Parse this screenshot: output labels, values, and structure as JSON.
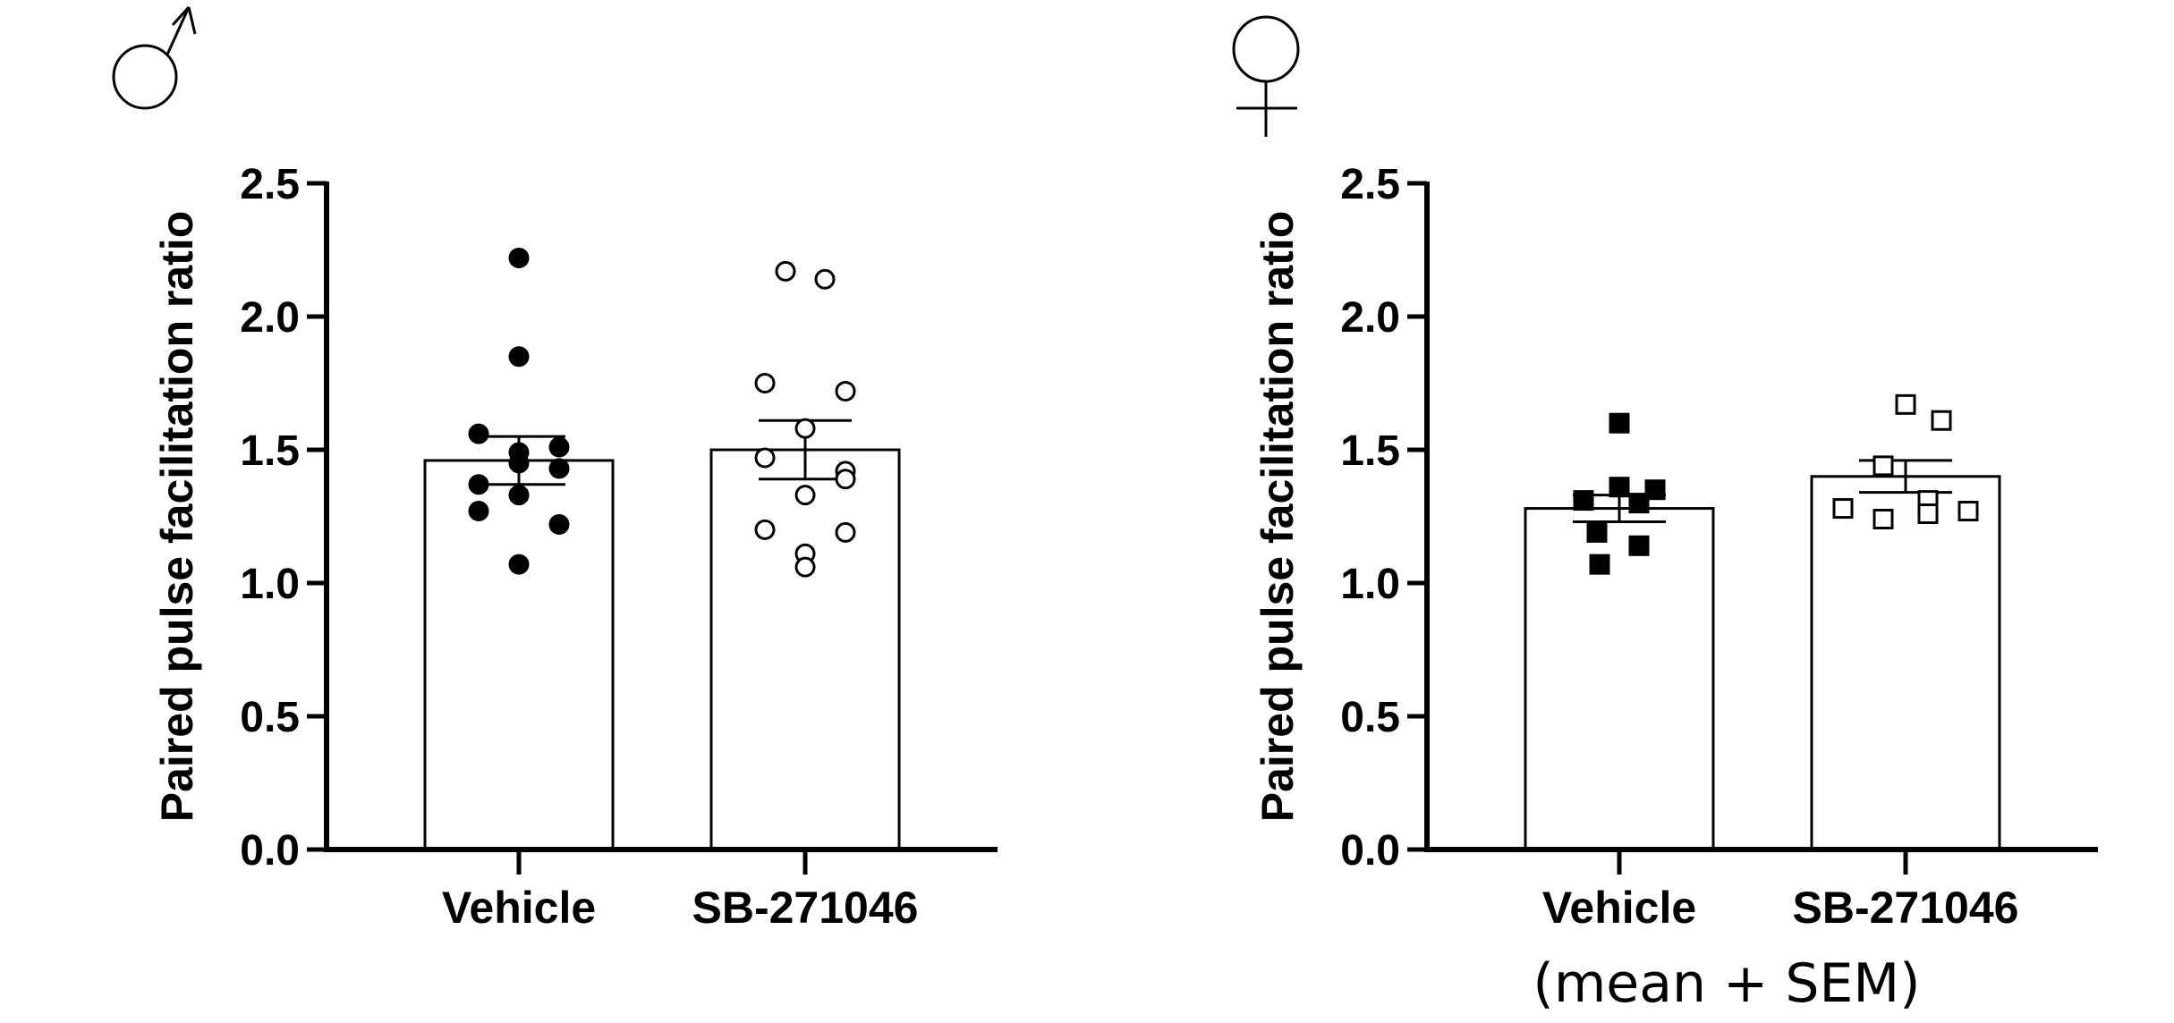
{
  "footnote": "(mean + SEM)",
  "chart_data": [
    {
      "type": "bar",
      "panel_symbol": "♂",
      "ylabel": "Paired pulse facilitation ratio",
      "ylim": [
        0,
        2.5
      ],
      "yticks": [
        0.0,
        0.5,
        1.0,
        1.5,
        2.0,
        2.5
      ],
      "ytick_labels": [
        "0.0",
        "0.5",
        "1.0",
        "1.5",
        "2.0",
        "2.5"
      ],
      "categories": [
        "Vehicle",
        "SB-271046"
      ],
      "bars": [
        {
          "category": "Vehicle",
          "mean": 1.46,
          "sem": 0.09,
          "marker": "circle",
          "filled": true,
          "points": [
            2.22,
            1.85,
            1.56,
            1.51,
            1.49,
            1.45,
            1.43,
            1.37,
            1.33,
            1.27,
            1.22,
            1.07
          ]
        },
        {
          "category": "SB-271046",
          "mean": 1.5,
          "sem": 0.11,
          "marker": "circle",
          "filled": false,
          "points": [
            2.17,
            2.14,
            1.75,
            1.72,
            1.58,
            1.47,
            1.42,
            1.39,
            1.33,
            1.2,
            1.19,
            1.11,
            1.06
          ]
        }
      ]
    },
    {
      "type": "bar",
      "panel_symbol": "♀",
      "ylabel": "Paired pulse facilitation ratio",
      "ylim": [
        0,
        2.5
      ],
      "yticks": [
        0.0,
        0.5,
        1.0,
        1.5,
        2.0,
        2.5
      ],
      "ytick_labels": [
        "0.0",
        "0.5",
        "1.0",
        "1.5",
        "2.0",
        "2.5"
      ],
      "categories": [
        "Vehicle",
        "SB-271046"
      ],
      "bars": [
        {
          "category": "Vehicle",
          "mean": 1.28,
          "sem": 0.05,
          "marker": "square",
          "filled": true,
          "points": [
            1.6,
            1.36,
            1.35,
            1.31,
            1.3,
            1.19,
            1.14,
            1.07
          ]
        },
        {
          "category": "SB-271046",
          "mean": 1.4,
          "sem": 0.06,
          "marker": "square",
          "filled": false,
          "points": [
            1.67,
            1.61,
            1.44,
            1.31,
            1.28,
            1.27,
            1.26,
            1.24
          ]
        }
      ]
    }
  ]
}
